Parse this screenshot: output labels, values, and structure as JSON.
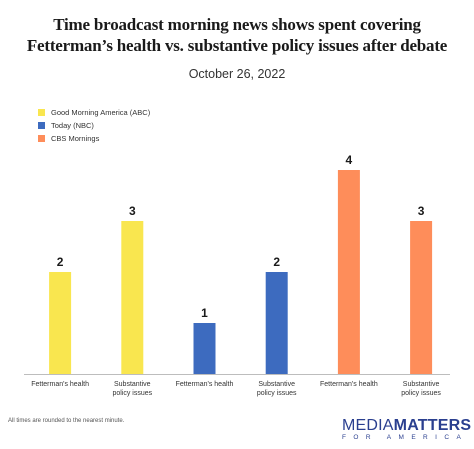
{
  "header": {
    "title_line1": "Time broadcast morning news shows spent covering",
    "title_line2": "Fetterman’s health vs. substantive policy issues after debate",
    "subtitle": "October 26, 2022"
  },
  "legend": [
    {
      "label": "Good Morning America (ABC)",
      "color": "#f9e64f"
    },
    {
      "label": "Today (NBC)",
      "color": "#3d6bbf"
    },
    {
      "label": "CBS Mornings",
      "color": "#fe8d5a"
    }
  ],
  "chart_data": {
    "type": "bar",
    "categories": [
      "Fetterman's health",
      "Substantive policy issues",
      "Fetterman's health",
      "Substantive policy issues",
      "Fetterman's health",
      "Substantive policy issues"
    ],
    "category_lines": [
      [
        "Fetterman's health"
      ],
      [
        "Substantive",
        "policy issues"
      ],
      [
        "Fetterman's health"
      ],
      [
        "Substantive",
        "policy issues"
      ],
      [
        "Fetterman's health"
      ],
      [
        "Substantive",
        "policy issues"
      ]
    ],
    "series": [
      {
        "name": "Good Morning America (ABC)",
        "values": [
          2,
          3,
          null,
          null,
          null,
          null
        ],
        "color": "#f9e64f"
      },
      {
        "name": "Today (NBC)",
        "values": [
          null,
          null,
          1,
          2,
          null,
          null
        ],
        "color": "#3d6bbf"
      },
      {
        "name": "CBS Mornings",
        "values": [
          null,
          null,
          null,
          null,
          4,
          3
        ],
        "color": "#fe8d5a"
      }
    ],
    "values": [
      2,
      3,
      1,
      2,
      4,
      3
    ],
    "data_labels": [
      "2",
      "3",
      "1",
      "2",
      "4",
      "3"
    ],
    "colors": [
      "#f9e64f",
      "#f9e64f",
      "#3d6bbf",
      "#3d6bbf",
      "#fe8d5a",
      "#fe8d5a"
    ],
    "ylim": [
      0,
      4
    ],
    "grid": false,
    "legend_position": "top-left",
    "title": "Time broadcast morning news shows spent covering Fetterman’s health vs. substantive policy issues after debate",
    "subtitle": "October 26, 2022"
  },
  "footer": {
    "note": "All times are rounded to the nearest minute.",
    "logo_word1": "MEDIA",
    "logo_word2": "MATTERS",
    "logo_sub": "FOR AMERICA"
  }
}
